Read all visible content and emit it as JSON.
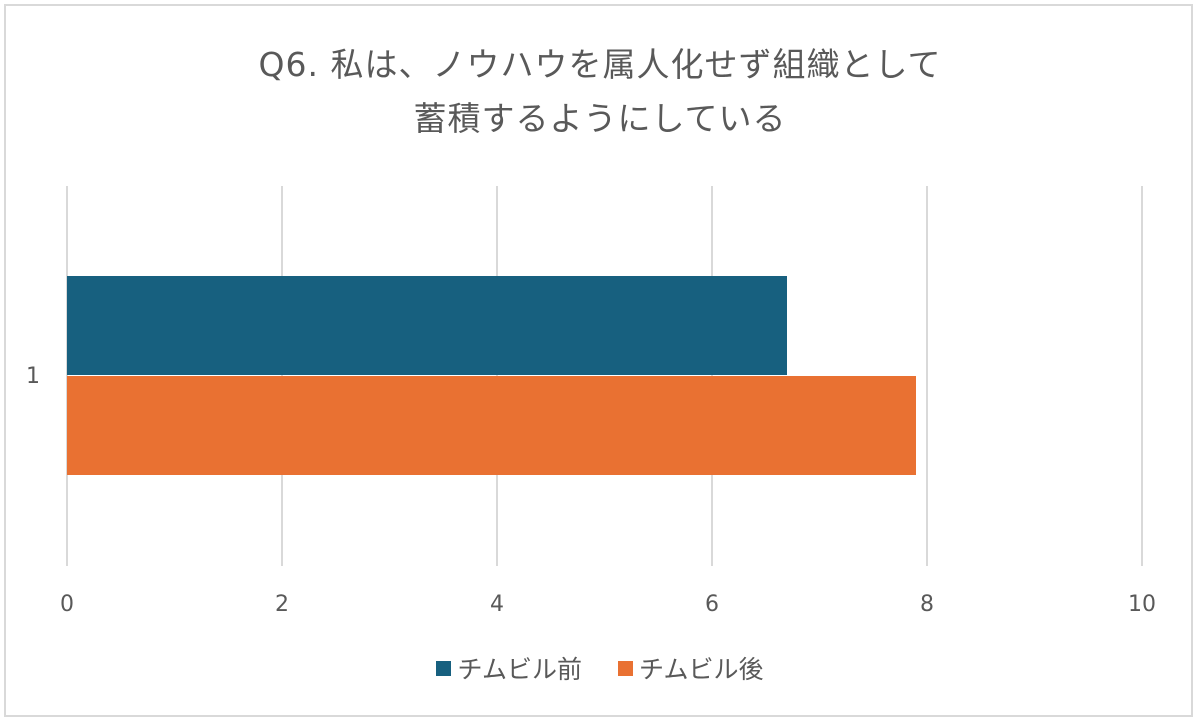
{
  "chart": {
    "title_line1": "Q6. 私は、ノウハウを属人化せず組織として",
    "title_line2": "蓄積するようにしている",
    "category_label": "1",
    "x_ticks": [
      "0",
      "2",
      "4",
      "6",
      "8",
      "10"
    ],
    "legend": [
      {
        "label": "チムビル前",
        "color": "#17607f"
      },
      {
        "label": "チムビル後",
        "color": "#e97132"
      }
    ]
  },
  "chart_data": {
    "type": "bar",
    "orientation": "horizontal",
    "title": "Q6. 私は、ノウハウを属人化せず組織として蓄積するようにしている",
    "categories": [
      "1"
    ],
    "series": [
      {
        "name": "チムビル前",
        "values": [
          6.7
        ],
        "color": "#17607f"
      },
      {
        "name": "チムビル後",
        "values": [
          7.9
        ],
        "color": "#e97132"
      }
    ],
    "xlabel": "",
    "ylabel": "",
    "xlim": [
      0,
      10
    ],
    "x_ticks": [
      0,
      2,
      4,
      6,
      8,
      10
    ],
    "grid": true,
    "legend_position": "bottom"
  }
}
